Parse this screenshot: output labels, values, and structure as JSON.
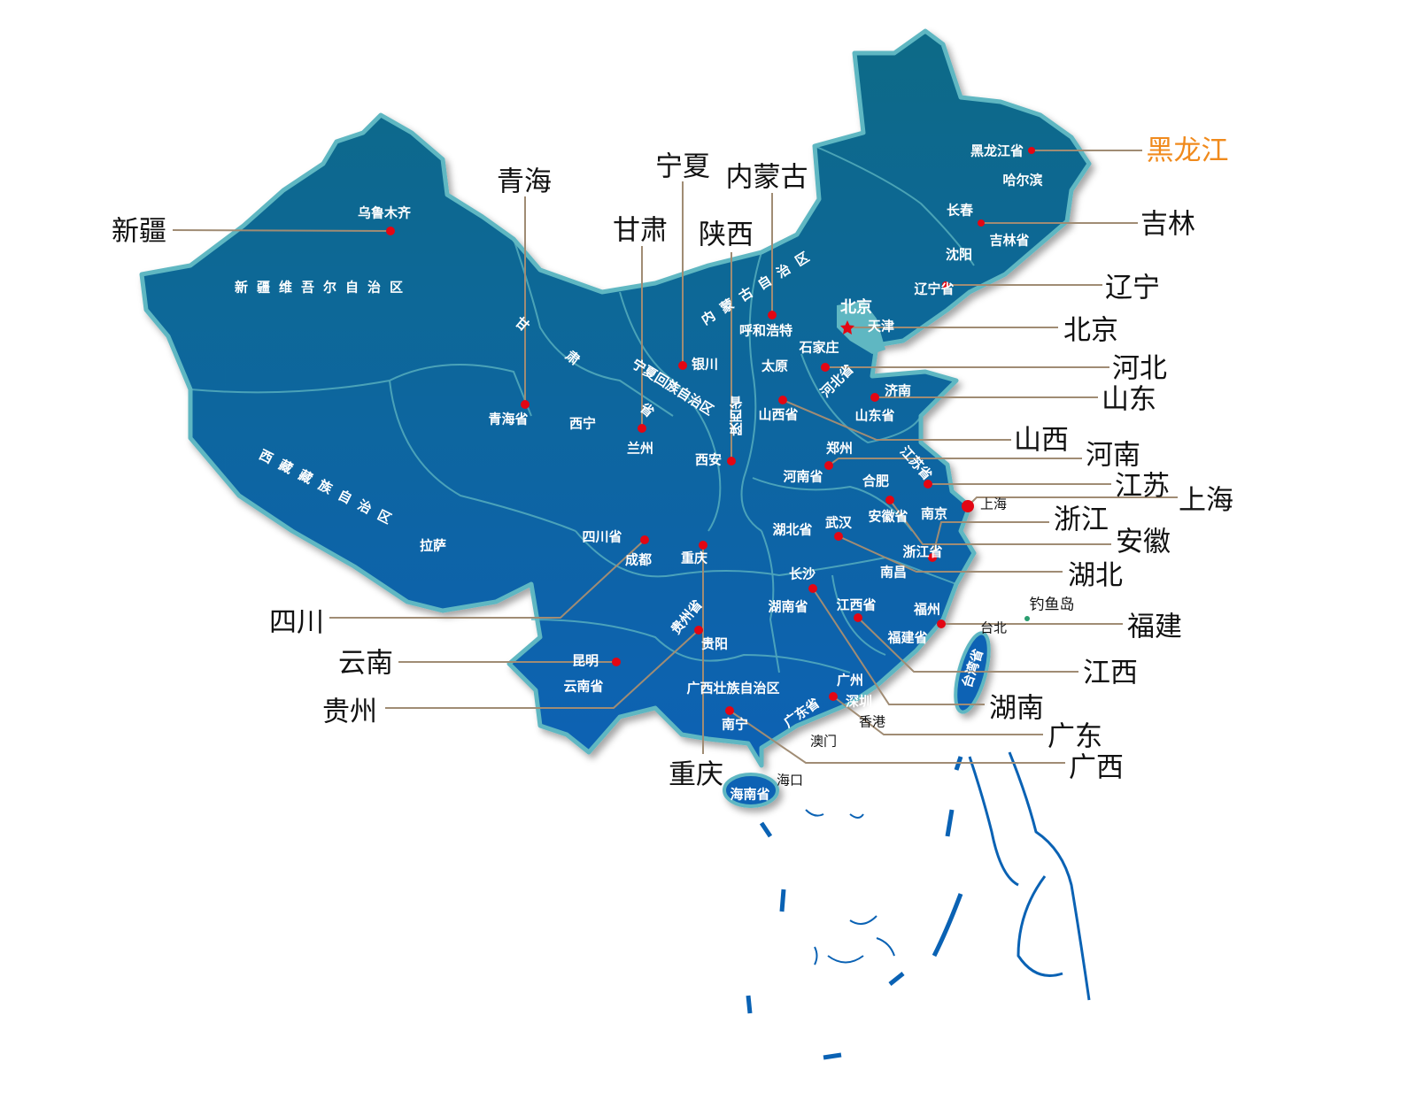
{
  "colors": {
    "land_top": "#0b6a87",
    "land_bottom": "#0a62b4",
    "border": "#5fb7c2",
    "leader": "#a08c74",
    "dot": "#e30613",
    "highlight": "#f08a1c"
  },
  "provinces": {
    "xinjiang": "新疆",
    "qinghai": "青海",
    "ningxia": "宁夏",
    "neimenggu": "内蒙古",
    "gansu": "甘肃",
    "shaanxi": "陕西",
    "heilongjiang": "黑龙江",
    "jilin": "吉林",
    "liaoning": "辽宁",
    "beijing": "北京",
    "hebei": "河北",
    "shandong": "山东",
    "shanxi": "山西",
    "henan": "河南",
    "jiangsu": "江苏",
    "shanghai": "上海",
    "zhejiang": "浙江",
    "anhui": "安徽",
    "hubei": "湖北",
    "sichuan": "四川",
    "yunnan": "云南",
    "fujian": "福建",
    "jiangxi": "江西",
    "guizhou": "贵州",
    "hunan": "湖南",
    "guangdong": "广东",
    "guangxi": "广西",
    "chongqing": "重庆"
  },
  "map_labels": {
    "urumqi": "乌鲁木齐",
    "xinjiang_region": "新疆维吾尔自治区",
    "tibet_region": "西藏藏族自治区",
    "lhasa": "拉萨",
    "qinghai_prov": "青海省",
    "xining": "西宁",
    "gan": "甘",
    "su": "肃",
    "sheng": "省",
    "lanzhou": "兰州",
    "ningxia_region": "宁夏回族自治区",
    "yinchuan": "银川",
    "neimenggu_region": "内蒙古自治区",
    "hohhot": "呼和浩特",
    "shaanxi_prov": "陕西省",
    "xian": "西安",
    "beijing_city": "北京",
    "tianjin": "天津",
    "shijiazhuang": "石家庄",
    "taiyuan": "太原",
    "hebei_prov": "河北省",
    "jinan": "济南",
    "shanxi_prov": "山西省",
    "shandong_prov": "山东省",
    "zhengzhou": "郑州",
    "henan_prov": "河南省",
    "jiangsu_prov": "江苏省",
    "hefei": "合肥",
    "anhui_prov": "安徽省",
    "nanjing": "南京",
    "shanghai_city": "上海",
    "hubei_prov": "湖北省",
    "wuhan": "武汉",
    "zhejiang_prov": "浙江省",
    "nanchang": "南昌",
    "sichuan_prov": "四川省",
    "chengdu": "成都",
    "chongqing_city": "重庆",
    "changsha": "长沙",
    "hunan_prov": "湖南省",
    "jiangxi_prov": "江西省",
    "fuzhou": "福州",
    "taipei": "台北",
    "fujian_prov": "福建省",
    "diaoyu": "钓鱼岛",
    "guizhou_prov": "贵州省",
    "guiyang": "贵阳",
    "kunming": "昆明",
    "yunnan_prov": "云南省",
    "guangxi_region": "广西壮族自治区",
    "guangzhou": "广州",
    "shenzhen": "深圳",
    "hongkong": "香港",
    "guangdong_prov": "广东省",
    "nanning": "南宁",
    "macau": "澳门",
    "haikou": "海口",
    "hainan_prov": "海南省",
    "taiwan_prov": "台湾省",
    "heilongjiang_prov": "黑龙江省",
    "harbin": "哈尔滨",
    "changchun": "长春",
    "jilin_prov": "吉林省",
    "shenyang": "沈阳",
    "liaoning_prov": "辽宁省"
  }
}
